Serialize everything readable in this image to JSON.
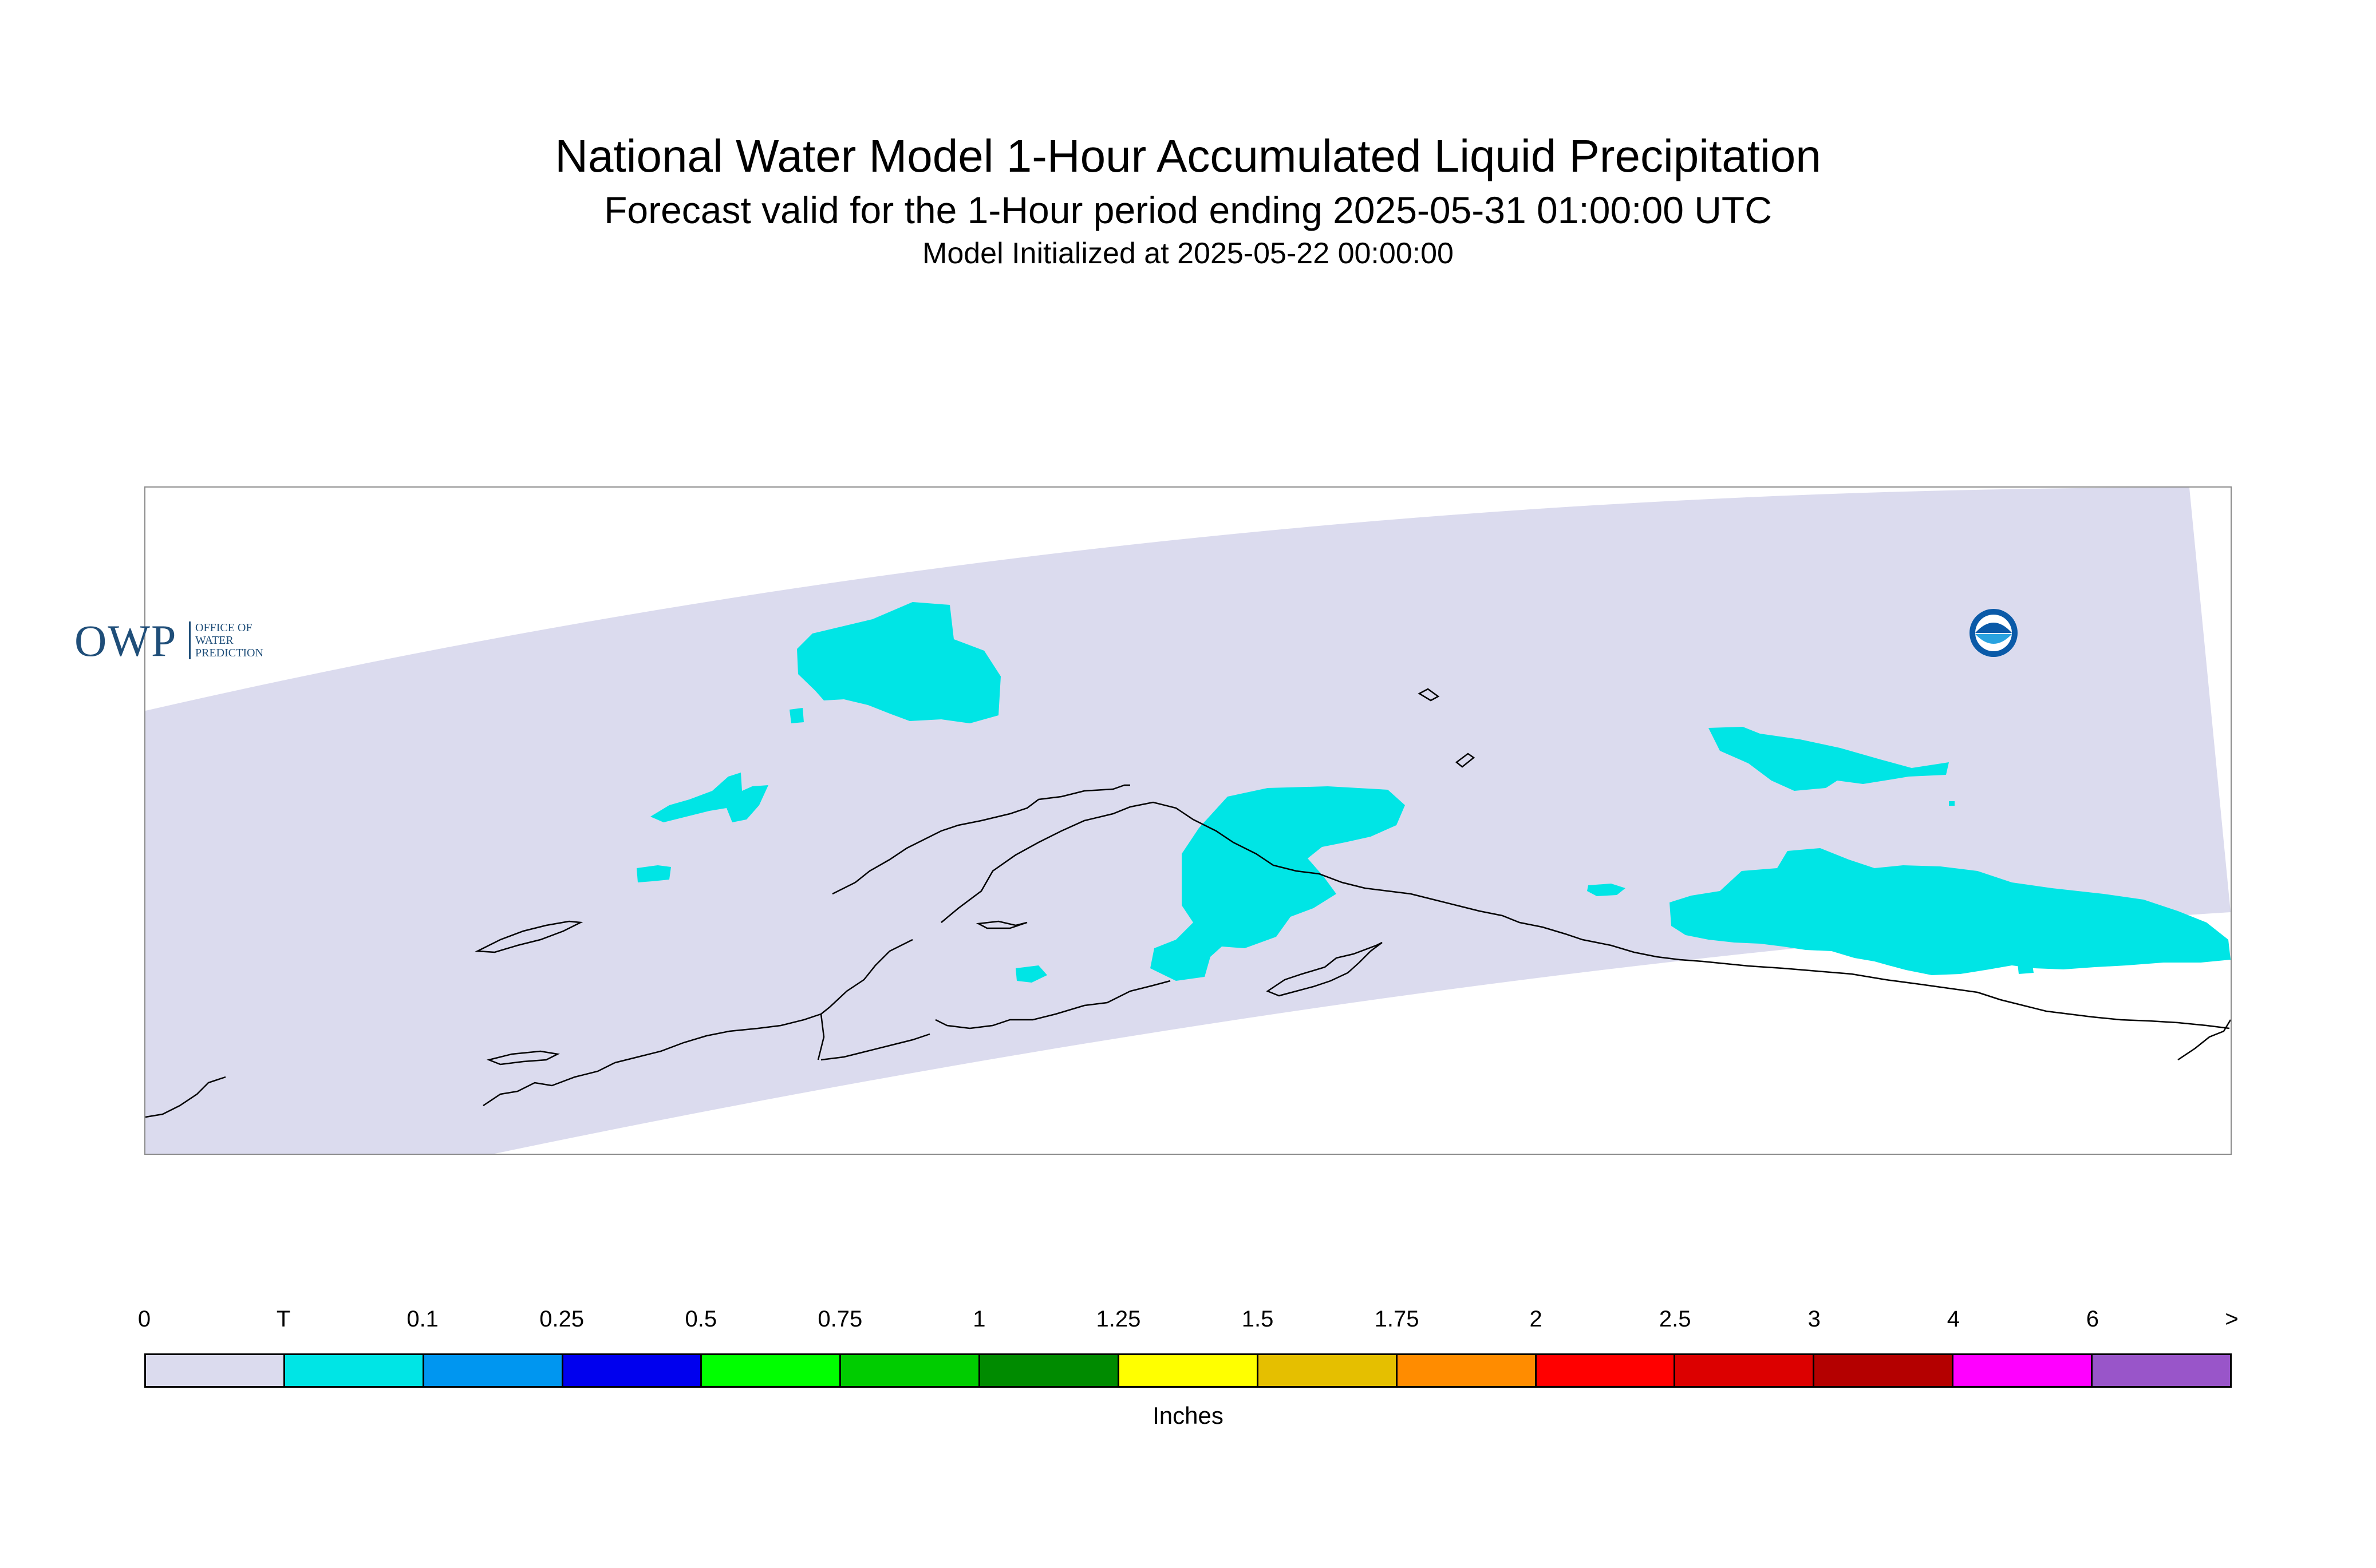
{
  "title": "National Water Model 1-Hour Accumulated Liquid Precipitation",
  "subtitle": "Forecast valid for the 1-Hour period ending 2025-05-31 01:00:00 UTC",
  "init_line": "Model Initialized at 2025-05-22 00:00:00",
  "map": {
    "region": "Alaska",
    "domain_fill_color": "#dbdbee",
    "precip_fill_color": "#00e5e5",
    "coastline_color": "#000000"
  },
  "logos": {
    "owp": {
      "letters": "OWP",
      "subtext": "Office of Water Prediction",
      "color": "#1f4e79"
    },
    "noaa": {
      "name": "NOAA",
      "icon": "noaa-logo-icon",
      "color": "#0a5aa8"
    }
  },
  "legend": {
    "labels": [
      "0",
      "T",
      "0.1",
      "0.25",
      "0.5",
      "0.75",
      "1",
      "1.25",
      "1.5",
      "1.75",
      "2",
      "2.5",
      "3",
      "4",
      "6",
      ">"
    ],
    "colors": [
      "#dbdbee",
      "#00e5e5",
      "#0096f0",
      "#0000ee",
      "#00ff00",
      "#00cc00",
      "#008b00",
      "#ffff00",
      "#e5bf00",
      "#ff8c00",
      "#ff0000",
      "#dc0000",
      "#b40000",
      "#ff00ff",
      "#9955c9"
    ],
    "units": "Inches"
  }
}
